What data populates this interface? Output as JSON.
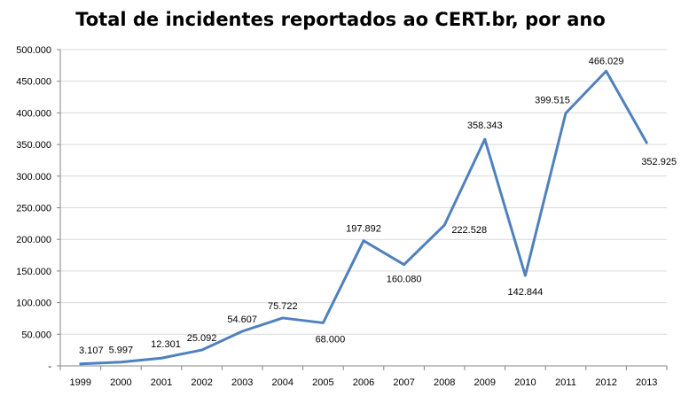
{
  "chart_data": {
    "type": "line",
    "title": "Total de incidentes reportados ao CERT.br, por ano",
    "xlabel": "",
    "ylabel": "",
    "categories": [
      "1999",
      "2000",
      "2001",
      "2002",
      "2003",
      "2004",
      "2005",
      "2006",
      "2007",
      "2008",
      "2009",
      "2010",
      "2011",
      "2012",
      "2013"
    ],
    "series": [
      {
        "name": "Total de incidentes",
        "color": "#4f81bd",
        "values": [
          3107,
          5997,
          12301,
          25092,
          54607,
          75722,
          68000,
          197892,
          160080,
          222528,
          358343,
          142844,
          399515,
          466029,
          352925
        ],
        "labels": [
          "3.107",
          "5.997",
          "12.301",
          "25.092",
          "54.607",
          "75.722",
          "68.000",
          "197.892",
          "160.080",
          "222.528",
          "358.343",
          "142.844",
          "399.515",
          "466.029",
          "352.925"
        ]
      }
    ],
    "ylim": [
      0,
      500000
    ],
    "yticks": [
      0,
      50000,
      100000,
      150000,
      200000,
      250000,
      300000,
      350000,
      400000,
      450000,
      500000
    ],
    "ytick_labels": [
      "-",
      "50.000",
      "100.000",
      "150.000",
      "200.000",
      "250.000",
      "300.000",
      "350.000",
      "400.000",
      "450.000",
      "500.000"
    ],
    "grid": true,
    "legend": "none"
  }
}
